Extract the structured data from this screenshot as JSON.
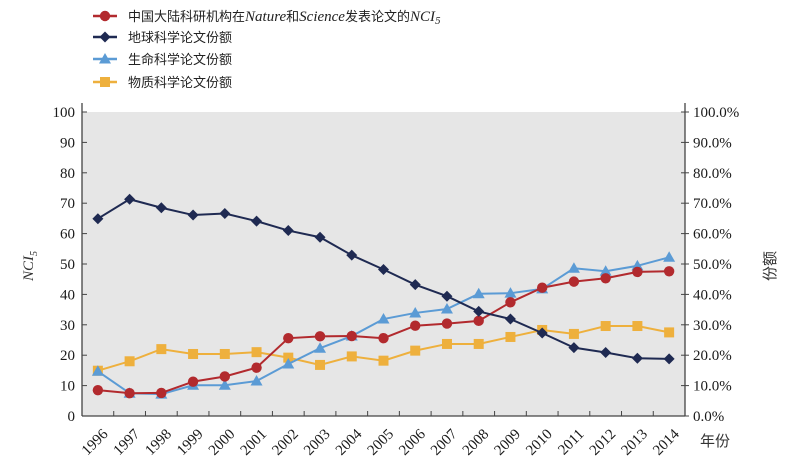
{
  "chart_data": {
    "type": "line",
    "title": "",
    "x": [
      "1996",
      "1997",
      "1998",
      "1999",
      "2000",
      "2001",
      "2002",
      "2003",
      "2004",
      "2005",
      "2006",
      "2007",
      "2008",
      "2009",
      "2010",
      "2011",
      "2012",
      "2013",
      "2014"
    ],
    "xlabel": "年份",
    "ylabel_left": "NCI",
    "ylabel_left_subscript": "5",
    "ylabel_right": "份额",
    "ylim_left": [
      0,
      100
    ],
    "ylim_right": [
      0,
      1
    ],
    "yticks_left": [
      "0",
      "10",
      "20",
      "30",
      "40",
      "50",
      "60",
      "70",
      "80",
      "90",
      "100"
    ],
    "yticks_right": [
      "0.0%",
      "10.0%",
      "20.0%",
      "30.0%",
      "40.0%",
      "50.0%",
      "60.0%",
      "70.0%",
      "80.0%",
      "90.0%",
      "100.0%"
    ],
    "grid": false,
    "legend_position": "top-left",
    "series": [
      {
        "name": "中国大陆科研机构在Nature和Science发表论文的NCI5",
        "legend_parts": [
          "中国大陆科研机构在",
          "Nature",
          "和",
          "Science",
          "发表论文的",
          "NCI",
          "5"
        ],
        "axis": "left",
        "marker": "circle",
        "color": "#b22a2e",
        "values": [
          8.5,
          7.5,
          7.6,
          11.3,
          13.0,
          15.9,
          25.6,
          26.2,
          26.3,
          25.6,
          29.7,
          30.4,
          31.3,
          37.4,
          42.2,
          44.2,
          45.3,
          47.4,
          47.6
        ]
      },
      {
        "name": "地球科学论文份额",
        "axis": "right",
        "marker": "diamond",
        "color": "#1f2a52",
        "values": [
          0.649,
          0.713,
          0.685,
          0.661,
          0.666,
          0.641,
          0.61,
          0.588,
          0.529,
          0.482,
          0.432,
          0.394,
          0.344,
          0.319,
          0.273,
          0.225,
          0.209,
          0.19,
          0.188
        ]
      },
      {
        "name": "生命科学论文份额",
        "axis": "right",
        "marker": "triangle",
        "color": "#5b9bd5",
        "values": [
          0.147,
          0.075,
          0.072,
          0.101,
          0.101,
          0.115,
          0.171,
          0.223,
          0.263,
          0.319,
          0.339,
          0.352,
          0.402,
          0.404,
          0.418,
          0.486,
          0.476,
          0.494,
          0.522
        ]
      },
      {
        "name": "物质科学论文份额",
        "axis": "right",
        "marker": "square",
        "color": "#eeb03d",
        "values": [
          0.149,
          0.18,
          0.22,
          0.204,
          0.204,
          0.21,
          0.192,
          0.168,
          0.196,
          0.182,
          0.215,
          0.237,
          0.237,
          0.26,
          0.283,
          0.27,
          0.296,
          0.296,
          0.275
        ]
      }
    ]
  },
  "colors": {
    "plot_background": "#e6e6e6",
    "axis": "#444444"
  }
}
